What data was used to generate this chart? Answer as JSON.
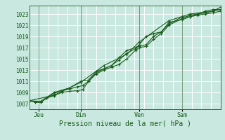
{
  "bg_color": "#c8e8e0",
  "grid_color": "#ffffff",
  "line_color": "#1a5c1a",
  "marker_color": "#1a5c1a",
  "title": "Pression niveau de la mer( hPa )",
  "yticks": [
    1007,
    1009,
    1011,
    1013,
    1015,
    1017,
    1019,
    1021,
    1023
  ],
  "ylim": [
    1006.0,
    1024.5
  ],
  "xlim": [
    0.0,
    1.0
  ],
  "day_labels": [
    "Jeu",
    "Dim",
    "Ven",
    "Sam"
  ],
  "day_positions": [
    0.05,
    0.27,
    0.575,
    0.8
  ],
  "vline_positions": [
    0.05,
    0.27,
    0.575,
    0.8
  ],
  "series1_x": [
    0.0,
    0.03,
    0.06,
    0.09,
    0.13,
    0.17,
    0.21,
    0.25,
    0.28,
    0.31,
    0.35,
    0.39,
    0.43,
    0.47,
    0.51,
    0.555,
    0.575,
    0.61,
    0.65,
    0.69,
    0.73,
    0.8,
    0.84,
    0.88,
    0.92,
    0.96,
    1.0
  ],
  "series1_y": [
    1007.5,
    1007.3,
    1007.2,
    1008.0,
    1008.4,
    1009.0,
    1009.2,
    1009.3,
    1009.5,
    1011.0,
    1012.3,
    1013.0,
    1013.5,
    1014.0,
    1015.0,
    1016.5,
    1017.0,
    1017.2,
    1018.5,
    1019.5,
    1021.0,
    1022.2,
    1022.8,
    1023.0,
    1023.2,
    1023.5,
    1023.8
  ],
  "series2_x": [
    0.0,
    0.03,
    0.06,
    0.09,
    0.13,
    0.17,
    0.21,
    0.25,
    0.28,
    0.31,
    0.35,
    0.39,
    0.43,
    0.47,
    0.51,
    0.555,
    0.575,
    0.61,
    0.65,
    0.69,
    0.73,
    0.8,
    0.84,
    0.88,
    0.92,
    0.96,
    1.0
  ],
  "series2_y": [
    1007.5,
    1007.3,
    1007.2,
    1008.0,
    1008.8,
    1009.3,
    1009.6,
    1010.0,
    1010.2,
    1011.0,
    1012.5,
    1013.2,
    1013.8,
    1015.2,
    1016.5,
    1017.0,
    1017.3,
    1017.5,
    1019.0,
    1019.8,
    1021.2,
    1022.5,
    1022.5,
    1022.8,
    1023.0,
    1023.2,
    1023.5
  ],
  "series3_x": [
    0.0,
    0.06,
    0.13,
    0.21,
    0.27,
    0.31,
    0.35,
    0.39,
    0.43,
    0.47,
    0.51,
    0.555,
    0.575,
    0.61,
    0.65,
    0.69,
    0.73,
    0.8,
    0.84,
    0.88,
    0.92,
    0.96,
    1.0
  ],
  "series3_y": [
    1007.5,
    1007.4,
    1009.0,
    1009.8,
    1011.0,
    1011.2,
    1012.8,
    1013.2,
    1013.8,
    1014.8,
    1016.0,
    1016.8,
    1017.5,
    1019.0,
    1019.5,
    1019.8,
    1021.5,
    1022.0,
    1022.5,
    1023.0,
    1023.5,
    1023.8,
    1023.8
  ],
  "series4_x": [
    0.0,
    0.13,
    0.27,
    0.39,
    0.51,
    0.575,
    0.73,
    0.84,
    0.96,
    1.0
  ],
  "series4_y": [
    1007.5,
    1008.5,
    1010.8,
    1013.8,
    1015.8,
    1018.0,
    1021.8,
    1023.0,
    1023.5,
    1024.2
  ],
  "n_xgrid": 20,
  "n_ygrid": 9
}
